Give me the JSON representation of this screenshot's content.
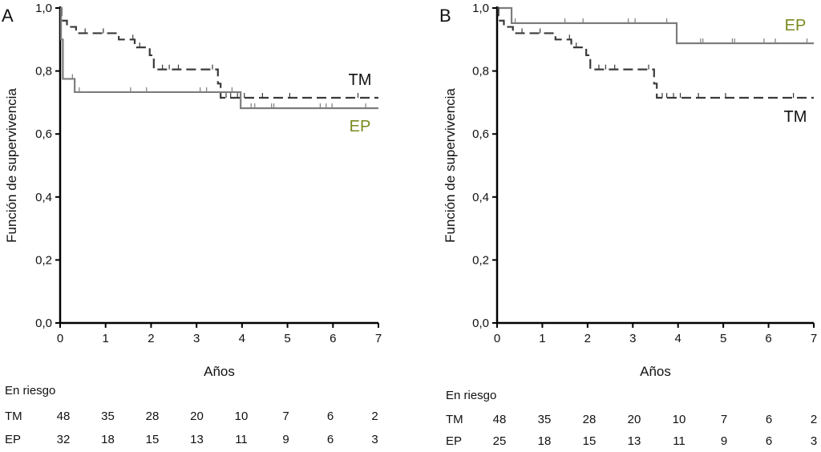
{
  "colors": {
    "TM": "#3a3a3a",
    "EP": "#7d7d7d",
    "EP_label": "#7a8a1e",
    "TM_label": "#111111"
  },
  "chart_data": [
    {
      "type": "line",
      "subtype": "kaplan-meier step",
      "panel_label": "A",
      "xlabel": "Años",
      "ylabel": "Función de supervivencia",
      "xlim": [
        0,
        7
      ],
      "ylim": [
        0,
        1
      ],
      "xticks": [
        "0",
        "1",
        "2",
        "3",
        "4",
        "5",
        "6",
        "7"
      ],
      "yticks": [
        "0,0",
        "0,2",
        "0,4",
        "0,6",
        "0,8",
        "1,0"
      ],
      "grid": false,
      "series": [
        {
          "name": "TM",
          "style": "dashed",
          "steps": [
            [
              0,
              1.0
            ],
            [
              0.03,
              0.96
            ],
            [
              0.15,
              0.94
            ],
            [
              0.35,
              0.92
            ],
            [
              1.29,
              0.9
            ],
            [
              1.64,
              0.875
            ],
            [
              1.97,
              0.85
            ],
            [
              2.06,
              0.805
            ],
            [
              3.47,
              0.76
            ],
            [
              3.53,
              0.715
            ],
            [
              7,
              0.715
            ]
          ],
          "censored": [
            0.55,
            0.95,
            1.6,
            1.75,
            2.25,
            2.4,
            2.6,
            3.35,
            3.65,
            3.75,
            3.9,
            4.05,
            4.45,
            5.05,
            6.55
          ]
        },
        {
          "name": "EP",
          "style": "solid",
          "steps": [
            [
              0,
              1.0
            ],
            [
              0.02,
              0.9
            ],
            [
              0.06,
              0.775
            ],
            [
              0.32,
              0.733
            ],
            [
              3.97,
              0.682
            ],
            [
              7,
              0.682
            ]
          ],
          "censored": [
            0.27,
            0.42,
            1.55,
            1.9,
            3.08,
            3.22,
            3.78,
            4.2,
            4.28,
            4.65,
            4.7,
            5.72,
            5.85,
            5.98,
            6.72
          ]
        }
      ],
      "risk_table": {
        "title": "En riesgo",
        "rows": [
          {
            "name": "TM",
            "values": [
              "48",
              "35",
              "28",
              "20",
              "10",
              "7",
              "6",
              "2"
            ]
          },
          {
            "name": "EP",
            "values": [
              "32",
              "18",
              "15",
              "13",
              "11",
              "9",
              "6",
              "3"
            ]
          }
        ]
      }
    },
    {
      "type": "line",
      "subtype": "kaplan-meier step",
      "panel_label": "B",
      "xlabel": "Años",
      "ylabel": "Función de supervivencia",
      "xlim": [
        0,
        7
      ],
      "ylim": [
        0,
        1
      ],
      "xticks": [
        "0",
        "1",
        "2",
        "3",
        "4",
        "5",
        "6",
        "7"
      ],
      "yticks": [
        "0,0",
        "0,2",
        "0,4",
        "0,6",
        "0,8",
        "1,0"
      ],
      "grid": false,
      "series": [
        {
          "name": "EP",
          "style": "solid",
          "steps": [
            [
              0,
              1.0
            ],
            [
              0.32,
              0.952
            ],
            [
              3.97,
              0.888
            ],
            [
              7,
              0.888
            ]
          ],
          "censored": [
            0.4,
            1.5,
            1.9,
            2.9,
            3.05,
            3.75,
            4.5,
            4.55,
            5.2,
            5.25,
            5.9,
            6.15,
            6.85
          ]
        },
        {
          "name": "TM",
          "style": "dashed",
          "steps": [
            [
              0,
              1.0
            ],
            [
              0.03,
              0.96
            ],
            [
              0.15,
              0.94
            ],
            [
              0.35,
              0.92
            ],
            [
              1.29,
              0.9
            ],
            [
              1.64,
              0.875
            ],
            [
              1.97,
              0.85
            ],
            [
              2.06,
              0.805
            ],
            [
              3.47,
              0.76
            ],
            [
              3.53,
              0.715
            ],
            [
              7,
              0.715
            ]
          ],
          "censored": [
            0.55,
            0.95,
            1.6,
            1.75,
            2.25,
            2.4,
            2.6,
            3.35,
            3.65,
            3.75,
            3.9,
            4.05,
            4.45,
            5.05,
            6.55
          ]
        }
      ],
      "risk_table": {
        "title": "En riesgo",
        "rows": [
          {
            "name": "TM",
            "values": [
              "48",
              "35",
              "28",
              "20",
              "10",
              "7",
              "6",
              "2"
            ]
          },
          {
            "name": "EP",
            "values": [
              "25",
              "18",
              "15",
              "13",
              "11",
              "9",
              "6",
              "3"
            ]
          }
        ]
      }
    }
  ]
}
